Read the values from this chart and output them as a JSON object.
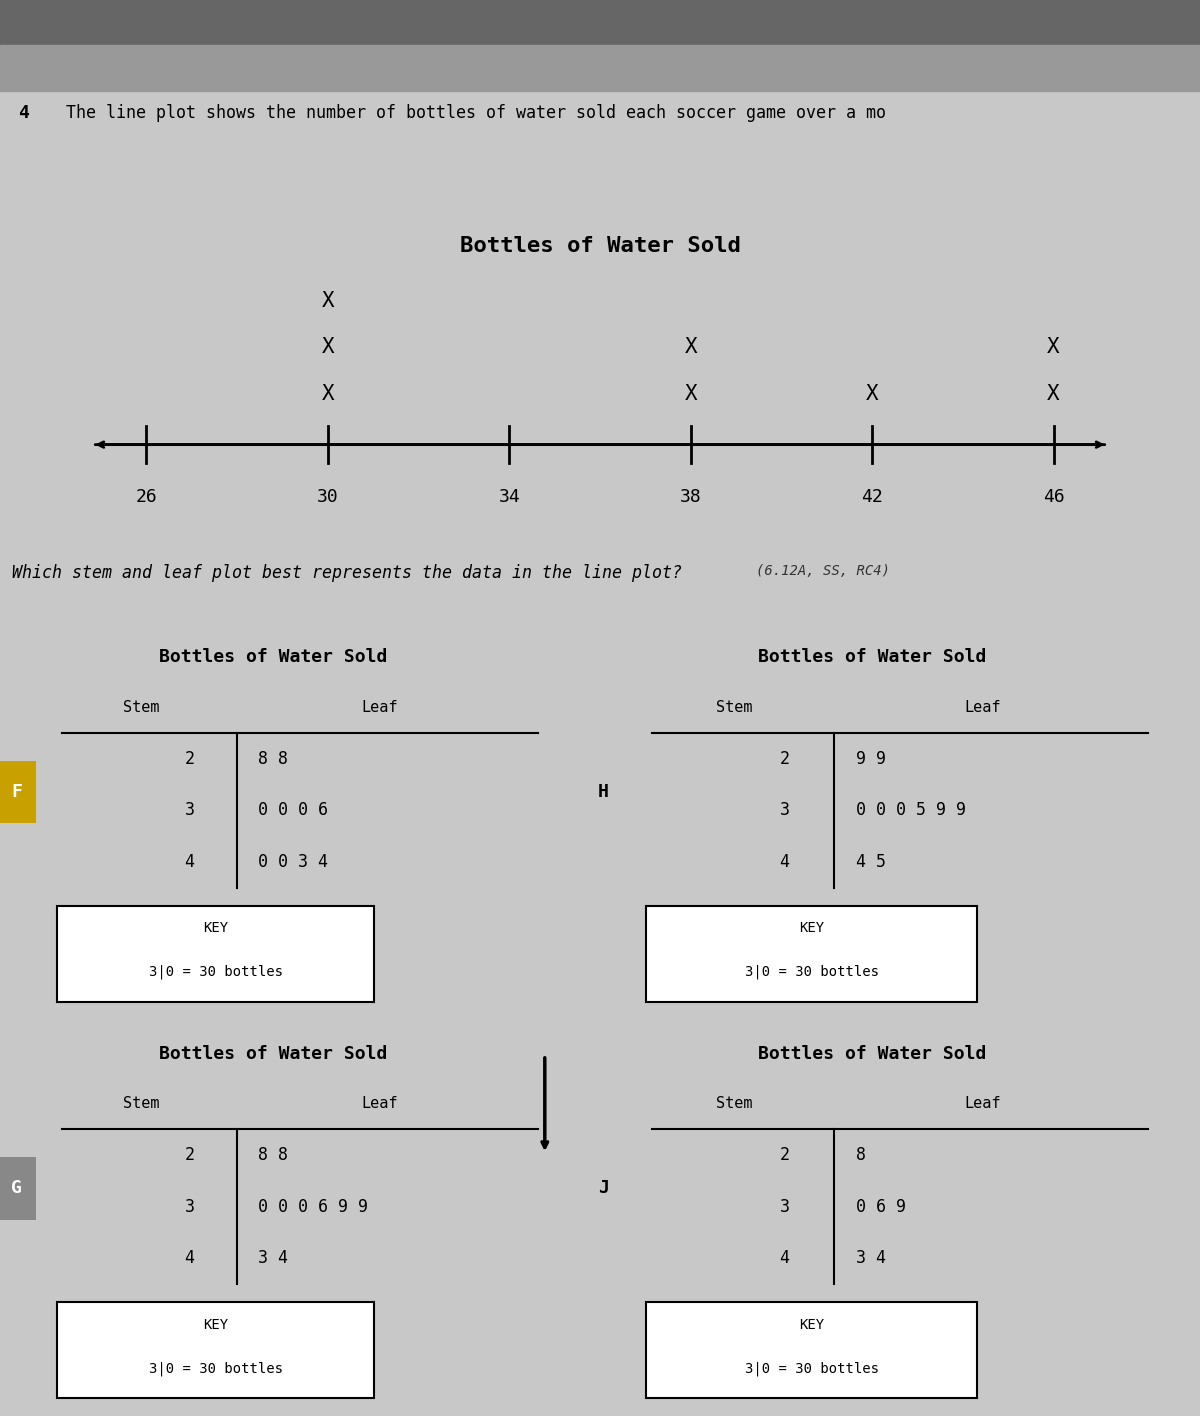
{
  "bg_color": "#c8c8c8",
  "question_num": "4",
  "question_text": "The line plot shows the number of bottles of water sold each soccer game over a mo",
  "lineplot_title": "Bottles of Water Sold",
  "lineplot_ticks": [
    26,
    30,
    34,
    38,
    42,
    46
  ],
  "lineplot_xs": [
    {
      "val": 30,
      "count": 3
    },
    {
      "val": 38,
      "count": 2
    },
    {
      "val": 42,
      "count": 1
    },
    {
      "val": 46,
      "count": 2
    }
  ],
  "question2": "Which stem and leaf plot best represents the data in the line plot?",
  "question2_ref": "(6.12A, SS, RC4)",
  "panels": [
    {
      "label": "F",
      "label_bg": "#c8a000",
      "title": "Bottles of Water Sold",
      "stems": [
        "2",
        "3",
        "4"
      ],
      "leaves": [
        "8 8",
        "0 0 0 6",
        "0 0 3 4"
      ],
      "key": "3|0 = 30 bottles"
    },
    {
      "label": "H",
      "label_bg": null,
      "title": "Bottles of Water Sold",
      "stems": [
        "2",
        "3",
        "4"
      ],
      "leaves": [
        "9 9",
        "0 0 0 5 9 9",
        "4 5"
      ],
      "key": "3|0 = 30 bottles"
    },
    {
      "label": "G",
      "label_bg": "#888888",
      "title": "Bottles of Water Sold",
      "stems": [
        "2",
        "3",
        "4"
      ],
      "leaves": [
        "8 8",
        "0 0 0 6 9 9",
        "3 4"
      ],
      "key": "3|0 = 30 bottles"
    },
    {
      "label": "J",
      "label_bg": null,
      "title": "Bottles of Water Sold",
      "stems": [
        "2",
        "3",
        "4"
      ],
      "leaves": [
        "8",
        "0 6 9",
        "3 4"
      ],
      "key": "3|0 = 30 bottles"
    }
  ]
}
